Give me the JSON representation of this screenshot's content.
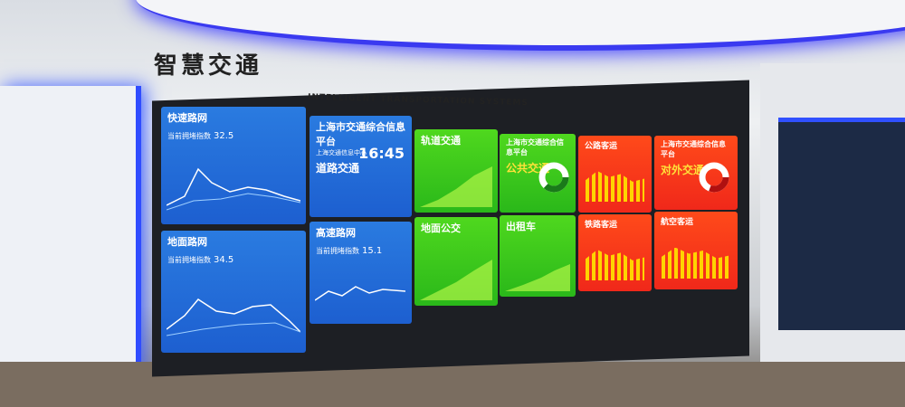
{
  "header": {
    "title": "智慧交通",
    "subtitle": "INTELLIGENT TRANSPORTATION SYSTEMS"
  },
  "panels": [
    {
      "title": "快速路网",
      "label": "当前拥堵指数",
      "value": 32.5
    },
    {
      "title": "地面路网",
      "label": "当前拥堵指数",
      "value": 34.5
    },
    {
      "title": "上海市交通综合信息平台",
      "subtitle": "上海交通信息中心",
      "heading": "道路交通",
      "time": "16:45"
    },
    {
      "title": "高速路网",
      "label": "当前拥堵指数",
      "value": 15.1
    },
    {
      "title": "轨道交通"
    },
    {
      "title": "地面公交"
    },
    {
      "title": "上海市交通综合信息平台",
      "heading": "公共交通"
    },
    {
      "title": "出租车"
    },
    {
      "title": "公路客运"
    },
    {
      "title": "铁路客运"
    },
    {
      "title": "上海市交通综合信息平台",
      "heading": "对外交通"
    },
    {
      "title": "航空客运"
    }
  ]
}
